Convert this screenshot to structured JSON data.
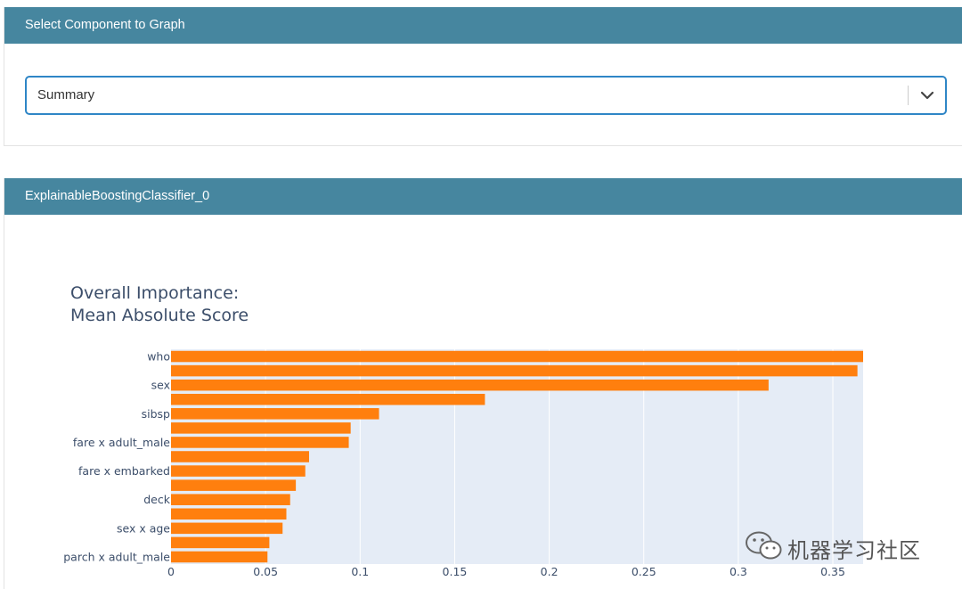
{
  "selector_panel": {
    "header": "Select Component to Graph",
    "selected": "Summary"
  },
  "graph_panel": {
    "header": "ExplainableBoostingClassifier_0"
  },
  "watermark": {
    "text": "机器学习社区"
  },
  "colors": {
    "header_bg": "#46869f",
    "bar": "#ff7f0e",
    "plot_bg": "#e5ecf6",
    "select_border": "#2f86c6"
  },
  "chart_data": {
    "type": "bar",
    "orientation": "horizontal",
    "title": [
      "Overall Importance:",
      "Mean Absolute Score"
    ],
    "categories": [
      "who",
      "",
      "sex",
      "",
      "sibsp",
      "",
      "fare x adult_male",
      "",
      "fare x embarked",
      "",
      "deck",
      "",
      "sex x age",
      "",
      "parch x adult_male"
    ],
    "values": [
      0.366,
      0.363,
      0.316,
      0.166,
      0.11,
      0.095,
      0.094,
      0.073,
      0.071,
      0.066,
      0.063,
      0.061,
      0.059,
      0.052,
      0.051
    ],
    "xlim": [
      0,
      0.366
    ],
    "xticks": [
      "0",
      "0.05",
      "0.1",
      "0.15",
      "0.2",
      "0.25",
      "0.3",
      "0.35"
    ],
    "xtick_values": [
      0,
      0.05,
      0.1,
      0.15,
      0.2,
      0.25,
      0.3,
      0.35
    ],
    "grid": true
  }
}
